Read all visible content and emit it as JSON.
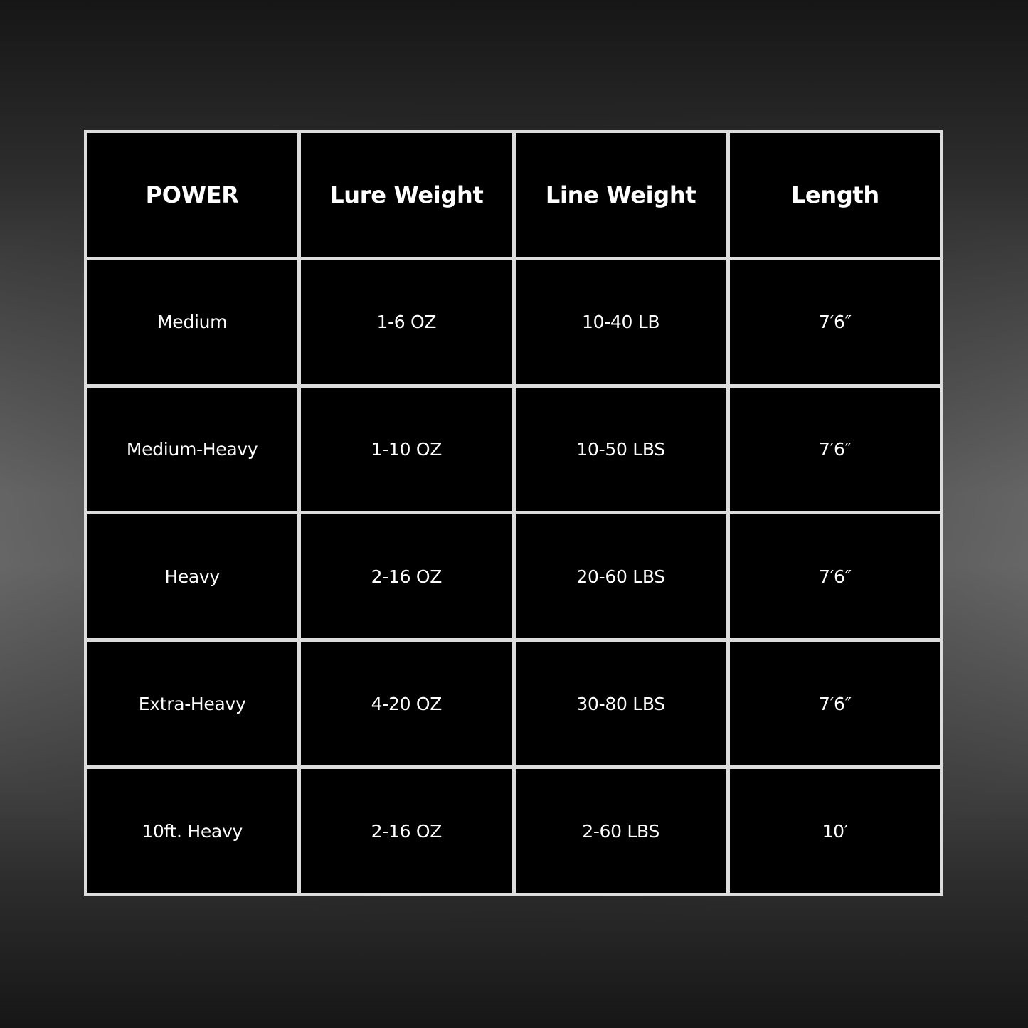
{
  "table": {
    "headers": [
      "POWER",
      "Lure Weight",
      "Line Weight",
      "Length"
    ],
    "rows": [
      [
        "Medium",
        "1-6 OZ",
        "10-40 LB",
        "7′6″"
      ],
      [
        "Medium-Heavy",
        "1-10 OZ",
        "10-50 LBS",
        "7′6″"
      ],
      [
        "Heavy",
        "2-16 OZ",
        "20-60 LBS",
        "7′6″"
      ],
      [
        "Extra-Heavy",
        "4-20 OZ",
        "30-80 LBS",
        "7′6″"
      ],
      [
        "10ft. Heavy",
        "2-16 OZ",
        "2-60 LBS",
        "10′"
      ]
    ]
  },
  "colors": {
    "cell_background": "#000000",
    "grid_lines": "#dcdcdc",
    "text": "#ffffff"
  }
}
